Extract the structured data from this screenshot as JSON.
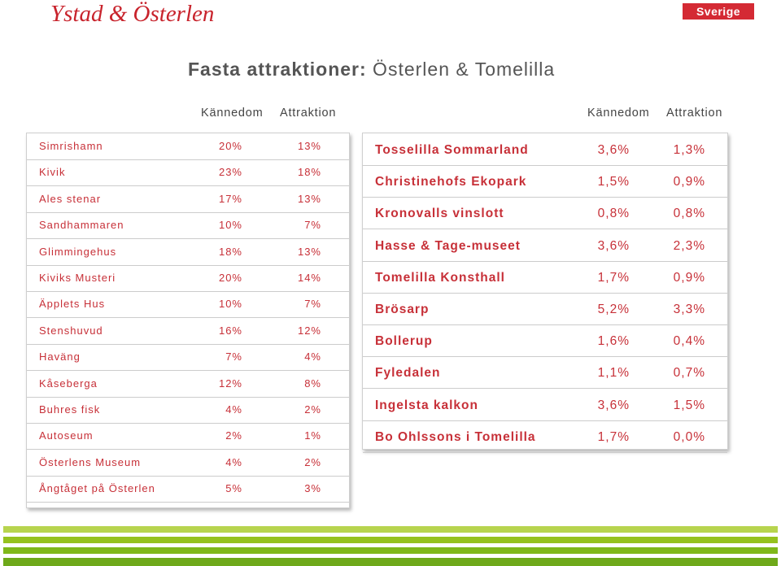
{
  "brand": "Ystad & Österlen",
  "badge": "Sverige",
  "title_bold": "Fasta attraktioner:",
  "title_rest": " Österlen & Tomelilla",
  "headers": {
    "left_col1": "Kännedom",
    "left_col2": "Attraktion",
    "right_col1": "Kännedom",
    "right_col2": "Attraktion"
  },
  "left_rows": [
    {
      "name": "Simrishamn",
      "kannedom": "20%",
      "attraktion": "13%"
    },
    {
      "name": "Kivik",
      "kannedom": "23%",
      "attraktion": "18%"
    },
    {
      "name": "Ales stenar",
      "kannedom": "17%",
      "attraktion": "13%"
    },
    {
      "name": "Sandhammaren",
      "kannedom": "10%",
      "attraktion": "7%"
    },
    {
      "name": "Glimmingehus",
      "kannedom": "18%",
      "attraktion": "13%"
    },
    {
      "name": "Kiviks Musteri",
      "kannedom": "20%",
      "attraktion": "14%"
    },
    {
      "name": "Äpplets Hus",
      "kannedom": "10%",
      "attraktion": "7%"
    },
    {
      "name": "Stenshuvud",
      "kannedom": "16%",
      "attraktion": "12%"
    },
    {
      "name": "Haväng",
      "kannedom": "7%",
      "attraktion": "4%"
    },
    {
      "name": "Kåseberga",
      "kannedom": "12%",
      "attraktion": "8%"
    },
    {
      "name": "Buhres fisk",
      "kannedom": "4%",
      "attraktion": "2%"
    },
    {
      "name": "Autoseum",
      "kannedom": "2%",
      "attraktion": "1%"
    },
    {
      "name": "Österlens Museum",
      "kannedom": "4%",
      "attraktion": "2%"
    },
    {
      "name": "Ångtåget på Österlen",
      "kannedom": "5%",
      "attraktion": "3%"
    }
  ],
  "right_rows": [
    {
      "name": "Tosselilla Sommarland",
      "kannedom": "3,6%",
      "attraktion": "1,3%"
    },
    {
      "name": "Christinehofs Ekopark",
      "kannedom": "1,5%",
      "attraktion": "0,9%"
    },
    {
      "name": "Kronovalls vinslott",
      "kannedom": "0,8%",
      "attraktion": "0,8%"
    },
    {
      "name": "Hasse & Tage-museet",
      "kannedom": "3,6%",
      "attraktion": "2,3%"
    },
    {
      "name": "Tomelilla Konsthall",
      "kannedom": "1,7%",
      "attraktion": "0,9%"
    },
    {
      "name": "Brösarp",
      "kannedom": "5,2%",
      "attraktion": "3,3%"
    },
    {
      "name": "Bollerup",
      "kannedom": "1,6%",
      "attraktion": "0,4%"
    },
    {
      "name": "Fyledalen",
      "kannedom": "1,1%",
      "attraktion": "0,7%"
    },
    {
      "name": "Ingelsta kalkon",
      "kannedom": "3,6%",
      "attraktion": "1,5%"
    },
    {
      "name": "Bo Ohlssons i Tomelilla",
      "kannedom": "1,7%",
      "attraktion": "0,0%"
    }
  ]
}
